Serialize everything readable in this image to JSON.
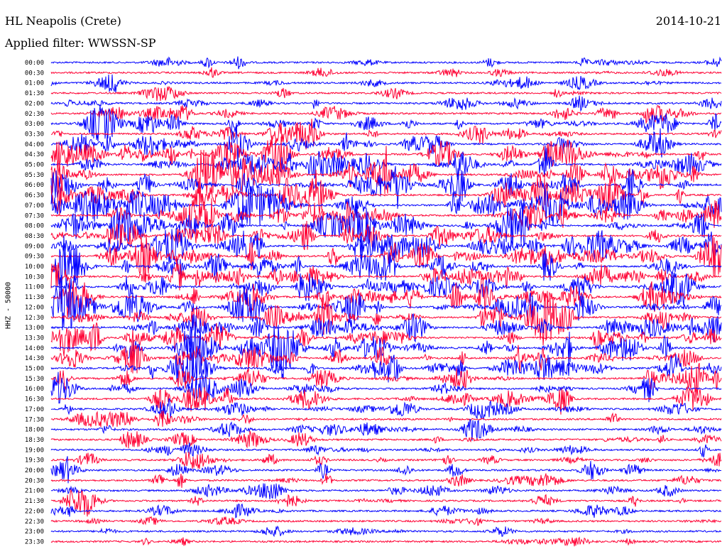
{
  "header": {
    "title": "HL Neapolis (Crete)",
    "date": "2014-10-21",
    "filter": "Applied filter: WWSSN-SP"
  },
  "chart_data": {
    "type": "line",
    "title": "HL Neapolis (Crete)",
    "date": "2014-10-21",
    "filter": "WWSSN-SP",
    "ylabel": "HHZ - 50000",
    "xlabel": "",
    "legend": "none",
    "grid": false,
    "line_colors": [
      "#0000ff",
      "#ff0033"
    ],
    "row_labels": [
      "00:00",
      "00:30",
      "01:00",
      "01:30",
      "02:00",
      "02:30",
      "03:00",
      "03:30",
      "04:00",
      "04:30",
      "05:00",
      "05:30",
      "06:00",
      "06:30",
      "07:00",
      "07:30",
      "08:00",
      "08:30",
      "09:00",
      "09:30",
      "10:00",
      "10:30",
      "11:00",
      "11:30",
      "12:00",
      "12:30",
      "13:00",
      "13:30",
      "14:00",
      "14:30",
      "15:00",
      "15:30",
      "16:00",
      "16:30",
      "17:00",
      "17:30",
      "18:00",
      "18:30",
      "19:00",
      "19:30",
      "20:00",
      "20:30",
      "21:00",
      "21:30",
      "22:00",
      "22:30",
      "23:00",
      "23:30"
    ],
    "row_activity": [
      0.25,
      0.2,
      0.3,
      0.25,
      0.35,
      0.45,
      0.7,
      0.6,
      0.75,
      0.85,
      0.95,
      1.0,
      1.0,
      1.0,
      1.0,
      1.0,
      1.0,
      1.0,
      1.0,
      0.95,
      1.0,
      1.0,
      0.95,
      0.95,
      1.0,
      0.95,
      0.9,
      0.9,
      0.95,
      0.9,
      0.85,
      0.75,
      0.7,
      0.65,
      0.5,
      0.45,
      0.45,
      0.45,
      0.4,
      0.4,
      0.4,
      0.35,
      0.3,
      0.35,
      0.3,
      0.25,
      0.2,
      0.2
    ]
  }
}
